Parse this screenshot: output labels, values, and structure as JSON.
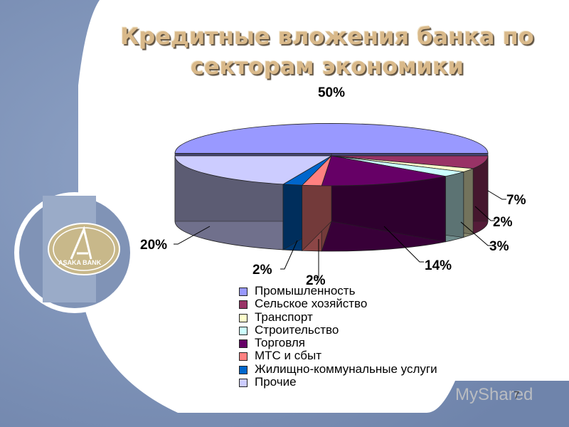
{
  "title": [
    "Кредитные вложения банка по",
    "секторам экономики"
  ],
  "colors": {
    "title": "#d9b98a",
    "background": "#7c90b4"
  },
  "logo": {
    "text": "ASAKA BANK"
  },
  "footer": {
    "brand": "MyShared",
    "page": "7"
  },
  "chart_data": {
    "type": "pie",
    "style": "3d-exploded",
    "categories": [
      "Промышленность",
      "Сельское хозяйство",
      "Транспорт",
      "Строительство",
      "Торговля",
      "МТС и сбыт",
      "Жилищно-коммунальные услуги",
      "Прочие"
    ],
    "values": [
      50,
      7,
      2,
      3,
      14,
      2,
      2,
      20
    ],
    "labels": [
      "50%",
      "7%",
      "2%",
      "3%",
      "14%",
      "2%",
      "2%",
      "20%"
    ],
    "colors": [
      "#9999ff",
      "#993366",
      "#ffffcc",
      "#ccffff",
      "#660066",
      "#ff8080",
      "#0066cc",
      "#ccccff"
    ],
    "legend": "bottom"
  }
}
